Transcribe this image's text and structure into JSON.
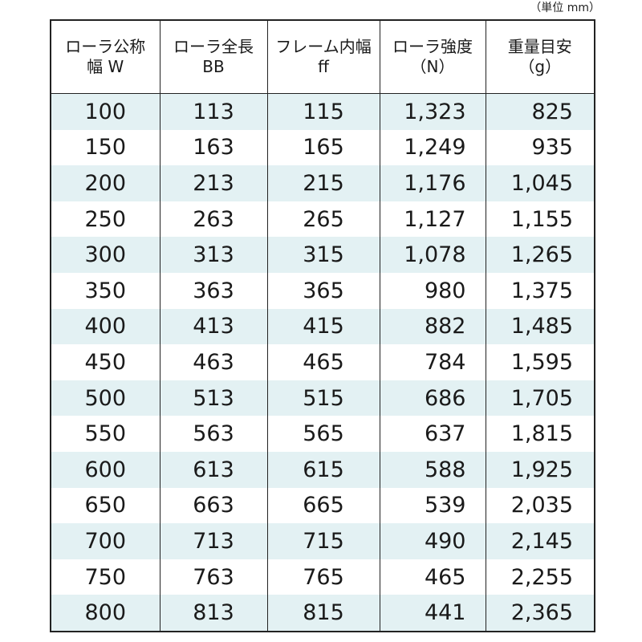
{
  "unit_note": "（単位 mm）",
  "headers": [
    {
      "line1": "ローラ公称",
      "line2": "幅 W"
    },
    {
      "line1": "ローラ全長",
      "line2": "BB"
    },
    {
      "line1": "フレーム内幅",
      "line2": "ff"
    },
    {
      "line1": "ローラ強度",
      "line2": "（N）"
    },
    {
      "line1": "重量目安",
      "line2": "（g）"
    }
  ],
  "rows": [
    [
      "100",
      "113",
      "115",
      "1,323",
      "825"
    ],
    [
      "150",
      "163",
      "165",
      "1,249",
      "935"
    ],
    [
      "200",
      "213",
      "215",
      "1,176",
      "1,045"
    ],
    [
      "250",
      "263",
      "265",
      "1,127",
      "1,155"
    ],
    [
      "300",
      "313",
      "315",
      "1,078",
      "1,265"
    ],
    [
      "350",
      "363",
      "365",
      "980",
      "1,375"
    ],
    [
      "400",
      "413",
      "415",
      "882",
      "1,485"
    ],
    [
      "450",
      "463",
      "465",
      "784",
      "1,595"
    ],
    [
      "500",
      "513",
      "515",
      "686",
      "1,705"
    ],
    [
      "550",
      "563",
      "565",
      "637",
      "1,815"
    ],
    [
      "600",
      "613",
      "615",
      "588",
      "1,925"
    ],
    [
      "650",
      "663",
      "665",
      "539",
      "2,035"
    ],
    [
      "700",
      "713",
      "715",
      "490",
      "2,145"
    ],
    [
      "750",
      "763",
      "765",
      "465",
      "2,255"
    ],
    [
      "800",
      "813",
      "815",
      "441",
      "2,365"
    ]
  ],
  "colors": {
    "band": "#e3f1f3",
    "border": "#222222"
  }
}
